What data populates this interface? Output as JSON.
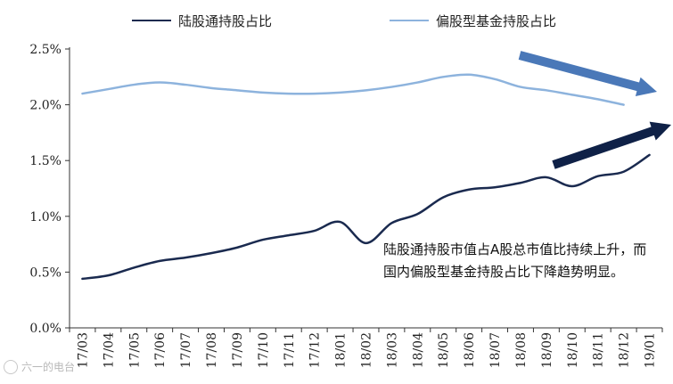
{
  "chart_data": {
    "type": "line",
    "title": "",
    "xlabel": "",
    "ylabel": "",
    "categories": [
      "17/03",
      "17/04",
      "17/05",
      "17/06",
      "17/07",
      "17/08",
      "17/09",
      "17/10",
      "17/11",
      "17/12",
      "18/01",
      "18/02",
      "18/03",
      "18/04",
      "18/05",
      "18/06",
      "18/07",
      "18/08",
      "18/09",
      "18/10",
      "18/11",
      "18/12",
      "19/01"
    ],
    "yticks": [
      "0.0%",
      "0.5%",
      "1.0%",
      "1.5%",
      "2.0%",
      "2.5%"
    ],
    "ylim": [
      0,
      2.5
    ],
    "grid": false,
    "legend_position": "top",
    "series": [
      {
        "name": "陆股通持股占比",
        "color": "#1a2a4f",
        "values": [
          0.44,
          0.47,
          0.54,
          0.6,
          0.63,
          0.67,
          0.72,
          0.79,
          0.83,
          0.87,
          0.95,
          0.76,
          0.94,
          1.02,
          1.17,
          1.24,
          1.26,
          1.3,
          1.35,
          1.27,
          1.36,
          1.4,
          1.55
        ]
      },
      {
        "name": "偏股型基金持股占比",
        "color": "#8db3dd",
        "values": [
          2.1,
          2.14,
          2.18,
          2.2,
          2.18,
          2.15,
          2.13,
          2.11,
          2.1,
          2.1,
          2.11,
          2.13,
          2.16,
          2.2,
          2.25,
          2.27,
          2.23,
          2.16,
          2.13,
          2.09,
          2.05,
          2.0,
          null
        ]
      }
    ],
    "annotations": [
      "陆股通持股市值占A股总市值比持续上升，而国内偏股型基金持股占比下降趋势明显。"
    ],
    "arrows": [
      {
        "direction": "down-right",
        "color": "#4a78b8"
      },
      {
        "direction": "up-right",
        "color": "#0f2147"
      }
    ]
  },
  "watermark": "六一的电台"
}
